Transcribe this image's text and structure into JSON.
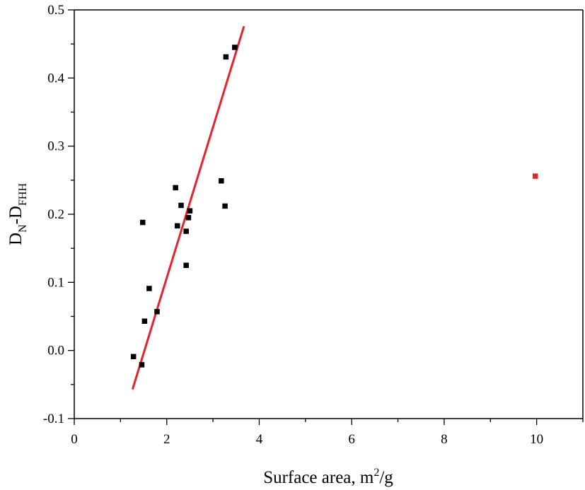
{
  "chart_data": {
    "type": "scatter",
    "xlabel": {
      "base": "Surface area, m",
      "sup": "2",
      "tail": "/g"
    },
    "ylabel": {
      "base": "D",
      "sub1": "N",
      "mid": "-D",
      "sub2": "FHH"
    },
    "xlim": [
      0,
      11
    ],
    "ylim": [
      -0.1,
      0.5
    ],
    "x_ticks": [
      0,
      2,
      4,
      6,
      8,
      10
    ],
    "x_tick_labels": [
      "0",
      "2",
      "4",
      "6",
      "8",
      "10"
    ],
    "y_ticks": [
      -0.1,
      0.0,
      0.1,
      0.2,
      0.3,
      0.4,
      0.5
    ],
    "y_tick_labels": [
      "-0.1",
      "0.0",
      "0.1",
      "0.2",
      "0.3",
      "0.4",
      "0.5"
    ],
    "grid": false,
    "series": [
      {
        "color": "#000000",
        "marker": "square",
        "points": [
          [
            1.28,
            -0.009
          ],
          [
            1.46,
            -0.021
          ],
          [
            1.52,
            0.043
          ],
          [
            1.62,
            0.091
          ],
          [
            1.79,
            0.057
          ],
          [
            1.48,
            0.188
          ],
          [
            2.19,
            0.239
          ],
          [
            2.23,
            0.183
          ],
          [
            2.31,
            0.213
          ],
          [
            2.42,
            0.175
          ],
          [
            2.42,
            0.125
          ],
          [
            2.47,
            0.195
          ],
          [
            2.5,
            0.205
          ],
          [
            3.18,
            0.249
          ],
          [
            3.26,
            0.212
          ],
          [
            3.28,
            0.431
          ],
          [
            3.47,
            0.445
          ]
        ]
      },
      {
        "color": "#e8232a",
        "marker": "square",
        "points": [
          [
            9.97,
            0.256
          ]
        ]
      }
    ],
    "fit_line": {
      "color": "#e8232a",
      "x": [
        1.26,
        3.67
      ],
      "y": [
        -0.057,
        0.476
      ]
    }
  }
}
